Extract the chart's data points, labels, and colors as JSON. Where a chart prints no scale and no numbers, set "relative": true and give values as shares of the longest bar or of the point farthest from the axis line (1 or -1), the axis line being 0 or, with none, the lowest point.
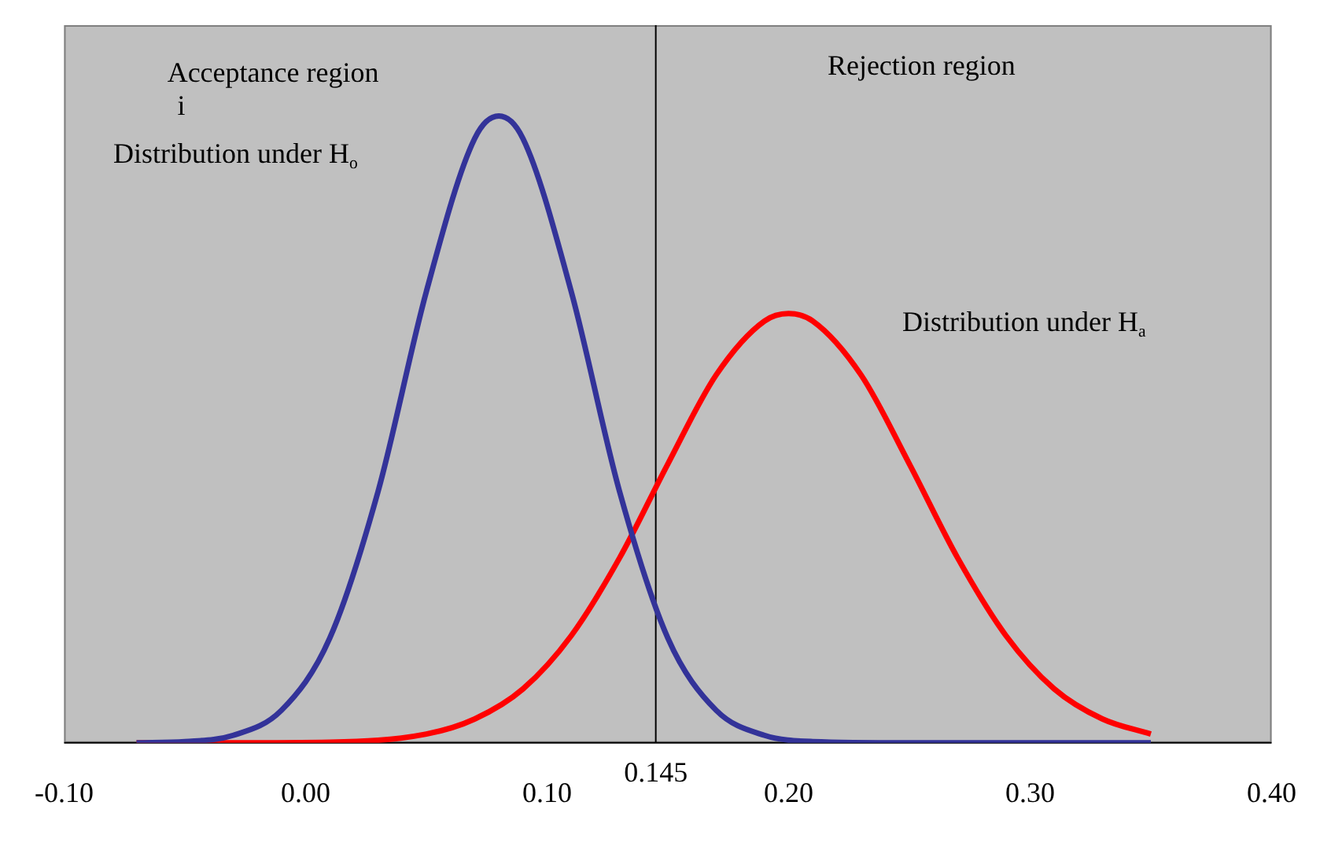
{
  "chart_data": {
    "type": "line",
    "relative": true,
    "marker": "none",
    "line_style": "solid",
    "grid": false,
    "legend": false,
    "tick_labels": "x",
    "xlim": [
      -0.1,
      0.4
    ],
    "xticks": [
      {
        "value": -0.1,
        "label": "-0.10"
      },
      {
        "value": 0,
        "label": "0.00"
      },
      {
        "value": 0.1,
        "label": "0.10"
      },
      {
        "value": 0.2,
        "label": "0.20"
      },
      {
        "value": 0.3,
        "label": "0.30"
      },
      {
        "value": 0.4,
        "label": "0.40"
      }
    ],
    "series": [
      {
        "color": "#333399",
        "x": [
          -0.07,
          -0.05,
          -0.03,
          -0.01,
          0.01,
          0.03,
          0.05,
          0.07,
          0.08,
          0.09,
          0.11,
          0.13,
          0.15,
          0.17,
          0.19,
          0.21,
          0.25,
          0.3,
          0.35
        ],
        "values": [
          0,
          0.002,
          0.012,
          0.052,
          0.167,
          0.401,
          0.72,
          0.964,
          1,
          0.964,
          0.72,
          0.401,
          0.167,
          0.052,
          0.012,
          0.002,
          0,
          0,
          0
        ]
      },
      {
        "color": "#ff0000",
        "x": [
          -0.07,
          -0.03,
          0.01,
          0.05,
          0.07,
          0.09,
          0.11,
          0.13,
          0.15,
          0.17,
          0.19,
          0.2,
          0.21,
          0.23,
          0.25,
          0.27,
          0.29,
          0.31,
          0.33,
          0.35
        ],
        "values": [
          0,
          0,
          0.001,
          0.014,
          0.038,
          0.086,
          0.171,
          0.295,
          0.445,
          0.587,
          0.673,
          0.685,
          0.673,
          0.587,
          0.445,
          0.295,
          0.171,
          0.086,
          0.038,
          0.014
        ]
      }
    ],
    "ref_lines": [
      {
        "axis": "x",
        "value": 0.145,
        "label": "0.145",
        "color": "#000000"
      }
    ],
    "annotations": [
      "Acceptance region",
      "i",
      "Distribution under H$_{o}$",
      "Rejection region",
      "Distribution under H$_{a}$"
    ]
  }
}
